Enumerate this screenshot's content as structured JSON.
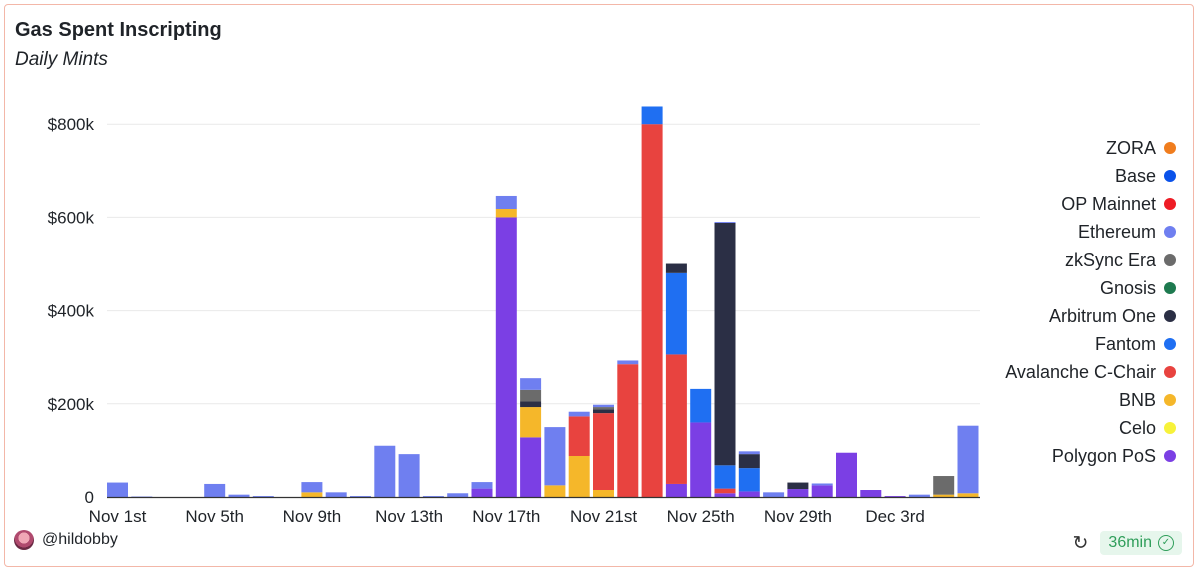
{
  "header": {
    "title": "Gas Spent Inscripting",
    "subtitle": "Daily Mints"
  },
  "footer": {
    "author": "@hildobby",
    "refresh_age": "36min"
  },
  "chart_data": {
    "type": "bar",
    "stacked": true,
    "title": "Gas Spent Inscripting",
    "subtitle": "Daily Mints",
    "ylim": [
      0,
      830000
    ],
    "y_ticks": [
      {
        "value": 0,
        "label": "0"
      },
      {
        "value": 200000,
        "label": "$200k"
      },
      {
        "value": 400000,
        "label": "$400k"
      },
      {
        "value": 600000,
        "label": "$600k"
      },
      {
        "value": 800000,
        "label": "$800k"
      }
    ],
    "x_tick_labels": [
      "Nov 1st",
      "Nov 5th",
      "Nov 9th",
      "Nov 13th",
      "Nov 17th",
      "Nov 21st",
      "Nov 25th",
      "Nov 29th",
      "Dec 3rd"
    ],
    "x_tick_index": [
      0,
      4,
      8,
      12,
      16,
      20,
      24,
      28,
      32
    ],
    "categories": [
      "Nov 1",
      "Nov 2",
      "Nov 3",
      "Nov 4",
      "Nov 5",
      "Nov 6",
      "Nov 7",
      "Nov 8",
      "Nov 9",
      "Nov 10",
      "Nov 11",
      "Nov 12",
      "Nov 13",
      "Nov 14",
      "Nov 15",
      "Nov 16",
      "Nov 17",
      "Nov 18",
      "Nov 19",
      "Nov 20",
      "Nov 21",
      "Nov 22",
      "Nov 23",
      "Nov 24",
      "Nov 25",
      "Nov 26",
      "Nov 27",
      "Nov 28",
      "Nov 29",
      "Nov 30",
      "Dec 1",
      "Dec 2",
      "Dec 3",
      "Dec 4",
      "Dec 5",
      "Dec 6"
    ],
    "legend_position": "right",
    "series": [
      {
        "name": "Polygon PoS",
        "color": "#7b3fe4",
        "values": [
          0,
          0,
          0,
          0,
          0,
          0,
          0,
          0,
          0,
          0,
          0,
          0,
          0,
          0,
          0,
          18000,
          600000,
          128000,
          0,
          0,
          0,
          0,
          0,
          28000,
          160000,
          8000,
          12000,
          0,
          17000,
          25000,
          95000,
          15000,
          2000,
          0,
          0,
          0
        ]
      },
      {
        "name": "Celo",
        "color": "#f7f23a",
        "values": [
          0,
          0,
          0,
          0,
          0,
          0,
          0,
          0,
          0,
          0,
          0,
          0,
          0,
          0,
          0,
          0,
          0,
          0,
          0,
          0,
          0,
          0,
          0,
          0,
          0,
          0,
          0,
          0,
          0,
          0,
          0,
          0,
          0,
          0,
          0,
          0
        ]
      },
      {
        "name": "BNB",
        "color": "#f5b72a",
        "values": [
          0,
          0,
          0,
          0,
          0,
          0,
          0,
          0,
          10000,
          0,
          0,
          0,
          0,
          0,
          0,
          0,
          18000,
          65000,
          25000,
          88000,
          15000,
          0,
          0,
          0,
          0,
          0,
          0,
          0,
          0,
          0,
          0,
          0,
          0,
          0,
          5000,
          8000
        ]
      },
      {
        "name": "Avalanche C-Chair",
        "color": "#e8433f",
        "values": [
          0,
          0,
          0,
          0,
          0,
          0,
          0,
          0,
          0,
          0,
          0,
          0,
          0,
          0,
          0,
          0,
          0,
          0,
          0,
          85000,
          165000,
          285000,
          800000,
          278000,
          0,
          10000,
          0,
          0,
          0,
          0,
          0,
          0,
          0,
          0,
          0,
          0
        ]
      },
      {
        "name": "Fantom",
        "color": "#1f6ff2",
        "values": [
          0,
          0,
          0,
          0,
          0,
          0,
          0,
          0,
          0,
          0,
          0,
          0,
          0,
          0,
          0,
          0,
          0,
          0,
          0,
          0,
          0,
          0,
          38000,
          175000,
          72000,
          50000,
          50000,
          0,
          0,
          0,
          0,
          0,
          0,
          0,
          0,
          0
        ]
      },
      {
        "name": "Arbitrum One",
        "color": "#2b2f45",
        "values": [
          0,
          0,
          0,
          0,
          0,
          0,
          0,
          0,
          0,
          0,
          0,
          0,
          0,
          0,
          0,
          0,
          0,
          12000,
          0,
          0,
          8000,
          0,
          0,
          20000,
          0,
          520000,
          30000,
          0,
          14000,
          0,
          0,
          0,
          0,
          0,
          0,
          0
        ]
      },
      {
        "name": "Gnosis",
        "color": "#1e7a4f",
        "values": [
          0,
          0,
          0,
          0,
          0,
          0,
          0,
          0,
          0,
          0,
          0,
          0,
          0,
          0,
          0,
          0,
          0,
          0,
          0,
          0,
          0,
          0,
          0,
          0,
          0,
          0,
          0,
          0,
          0,
          0,
          0,
          0,
          0,
          0,
          0,
          0
        ]
      },
      {
        "name": "zkSync Era",
        "color": "#6b6b6b",
        "values": [
          0,
          0,
          0,
          0,
          0,
          0,
          0,
          0,
          0,
          0,
          0,
          0,
          0,
          0,
          0,
          0,
          0,
          25000,
          0,
          0,
          5000,
          0,
          0,
          0,
          0,
          0,
          0,
          0,
          0,
          0,
          0,
          0,
          0,
          0,
          40000,
          0
        ]
      },
      {
        "name": "Ethereum",
        "color": "#6f7ff0",
        "values": [
          31000,
          1000,
          0,
          0,
          28000,
          5000,
          2000,
          0,
          22000,
          10000,
          2000,
          110000,
          92000,
          2000,
          8000,
          14000,
          28000,
          25000,
          125000,
          10000,
          5000,
          8000,
          0,
          0,
          0,
          2000,
          6000,
          10000,
          0,
          4000,
          0,
          0,
          0,
          5000,
          0,
          145000
        ]
      },
      {
        "name": "OP Mainnet",
        "color": "#ee1c25",
        "values": [
          0,
          0,
          0,
          0,
          0,
          0,
          0,
          0,
          0,
          0,
          0,
          0,
          0,
          0,
          0,
          0,
          0,
          0,
          0,
          0,
          0,
          0,
          0,
          0,
          0,
          0,
          0,
          0,
          0,
          0,
          0,
          0,
          0,
          0,
          0,
          0
        ]
      },
      {
        "name": "Base",
        "color": "#0a52ea",
        "values": [
          0,
          0,
          0,
          0,
          0,
          0,
          0,
          0,
          0,
          0,
          0,
          0,
          0,
          0,
          0,
          0,
          0,
          0,
          0,
          0,
          0,
          0,
          0,
          0,
          0,
          0,
          0,
          0,
          0,
          0,
          0,
          0,
          0,
          0,
          0,
          0
        ]
      },
      {
        "name": "ZORA",
        "color": "#f07d1e",
        "values": [
          0,
          0,
          0,
          0,
          0,
          0,
          0,
          0,
          0,
          0,
          0,
          0,
          0,
          0,
          0,
          0,
          0,
          0,
          0,
          0,
          0,
          0,
          0,
          0,
          0,
          0,
          0,
          0,
          0,
          0,
          0,
          0,
          0,
          0,
          0,
          0
        ]
      }
    ],
    "legend": [
      {
        "name": "ZORA",
        "color": "#f07d1e"
      },
      {
        "name": "Base",
        "color": "#0a52ea"
      },
      {
        "name": "OP Mainnet",
        "color": "#ee1c25"
      },
      {
        "name": "Ethereum",
        "color": "#6f7ff0"
      },
      {
        "name": "zkSync Era",
        "color": "#6b6b6b"
      },
      {
        "name": "Gnosis",
        "color": "#1e7a4f"
      },
      {
        "name": "Arbitrum One",
        "color": "#2b2f45"
      },
      {
        "name": "Fantom",
        "color": "#1f6ff2"
      },
      {
        "name": "Avalanche C-Chair",
        "color": "#e8433f"
      },
      {
        "name": "BNB",
        "color": "#f5b72a"
      },
      {
        "name": "Celo",
        "color": "#f7f23a"
      },
      {
        "name": "Polygon PoS",
        "color": "#7b3fe4"
      }
    ]
  }
}
